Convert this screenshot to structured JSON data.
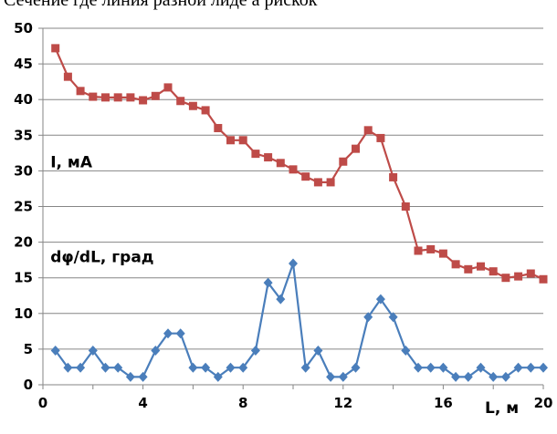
{
  "caption": "Сечение где линия разной лиде а рискок",
  "chart_data": {
    "type": "line",
    "xlabel": "L, м",
    "ylabel": "",
    "xlim": [
      0,
      20
    ],
    "ylim": [
      0,
      50
    ],
    "x_ticks": [
      "0",
      "4",
      "8",
      "12",
      "16",
      "20"
    ],
    "y_ticks": [
      "0",
      "5",
      "10",
      "15",
      "20",
      "25",
      "30",
      "35",
      "40",
      "45",
      "50"
    ],
    "grid": "horizontal",
    "annotations": [
      {
        "text": "I, мА",
        "x": 0.3,
        "y": 30.5
      },
      {
        "text": "dφ/dL, град",
        "x": 0.3,
        "y": 17.2
      }
    ],
    "series": [
      {
        "label": "I, мА",
        "color": "#be4b48",
        "marker": "square",
        "x": [
          0.5,
          1,
          1.5,
          2,
          2.5,
          3,
          3.5,
          4,
          4.5,
          5,
          5.5,
          6,
          6.5,
          7,
          7.5,
          8,
          8.5,
          9,
          9.5,
          10,
          10.5,
          11,
          11.5,
          12,
          12.5,
          13,
          13.5,
          14,
          14.5,
          15,
          15.5,
          16,
          16.5,
          17,
          17.5,
          18,
          18.5,
          19,
          19.5,
          20
        ],
        "y": [
          47.2,
          43.2,
          41.2,
          40.4,
          40.3,
          40.3,
          40.3,
          39.9,
          40.5,
          41.7,
          39.8,
          39.1,
          38.5,
          36.0,
          34.3,
          34.3,
          32.4,
          31.9,
          31.1,
          30.2,
          29.2,
          28.4,
          28.4,
          31.3,
          33.1,
          35.7,
          34.6,
          29.1,
          25.0,
          18.8,
          19.0,
          18.4,
          16.9,
          16.2,
          16.6,
          15.9,
          15.0,
          15.2,
          15.6,
          14.8
        ]
      },
      {
        "label": "dφ/dL, град",
        "color": "#4a7ebb",
        "marker": "diamond",
        "x": [
          0.5,
          1,
          1.5,
          2,
          2.5,
          3,
          3.5,
          4,
          4.5,
          5,
          5.5,
          6,
          6.5,
          7,
          7.5,
          8,
          8.5,
          9,
          9.5,
          10,
          10.5,
          11,
          11.5,
          12,
          12.5,
          13,
          13.5,
          14,
          14.5,
          15,
          15.5,
          16,
          16.5,
          17,
          17.5,
          18,
          18.5,
          19,
          19.5,
          20
        ],
        "y": [
          4.8,
          2.4,
          2.4,
          4.8,
          2.4,
          2.4,
          1.1,
          1.1,
          4.8,
          7.2,
          7.2,
          2.4,
          2.4,
          1.1,
          2.4,
          2.4,
          4.8,
          14.3,
          12.0,
          17.0,
          2.4,
          4.8,
          1.1,
          1.1,
          2.4,
          9.5,
          12.0,
          9.5,
          4.8,
          2.4,
          2.4,
          2.4,
          1.1,
          1.1,
          2.4,
          1.1,
          1.1,
          2.4,
          2.4,
          2.4
        ]
      }
    ]
  }
}
